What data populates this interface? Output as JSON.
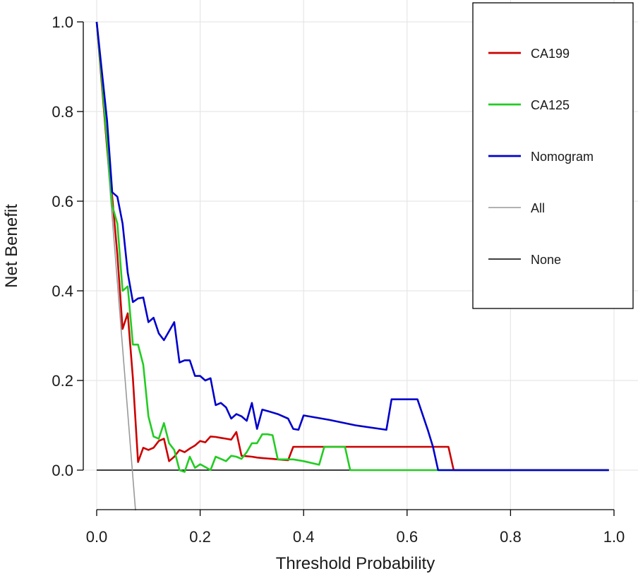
{
  "chart_data": {
    "type": "line",
    "title": "",
    "xlabel": "Threshold Probability",
    "ylabel": "Net Benefit",
    "xlim": [
      0.0,
      1.0
    ],
    "ylim": [
      -0.09,
      1.0
    ],
    "xticks": [
      0.0,
      0.2,
      0.4,
      0.6,
      0.8,
      1.0
    ],
    "xtick_labels": [
      "0.0",
      "0.2",
      "0.4",
      "0.6",
      "0.8",
      "1.0"
    ],
    "yticks": [
      0.0,
      0.2,
      0.4,
      0.6,
      0.8,
      1.0
    ],
    "ytick_labels": [
      "0.0",
      "0.2",
      "0.4",
      "0.6",
      "0.8",
      "1.0"
    ],
    "grid": true,
    "legend_position": "top-right",
    "series": [
      {
        "name": "CA199",
        "color": "#cc0000",
        "x": [
          0.0,
          0.01,
          0.02,
          0.03,
          0.04,
          0.05,
          0.06,
          0.07,
          0.08,
          0.09,
          0.1,
          0.11,
          0.12,
          0.13,
          0.14,
          0.15,
          0.16,
          0.17,
          0.18,
          0.19,
          0.2,
          0.21,
          0.22,
          0.23,
          0.24,
          0.25,
          0.26,
          0.27,
          0.28,
          0.29,
          0.3,
          0.31,
          0.32,
          0.33,
          0.34,
          0.35,
          0.36,
          0.37,
          0.38,
          0.4,
          0.45,
          0.5,
          0.55,
          0.6,
          0.65,
          0.68,
          0.69,
          0.7,
          0.8,
          0.9,
          0.99
        ],
        "y": [
          1.0,
          0.86,
          0.72,
          0.61,
          0.48,
          0.315,
          0.35,
          0.205,
          0.018,
          0.05,
          0.045,
          0.05,
          0.065,
          0.07,
          0.02,
          0.03,
          0.045,
          0.04,
          0.048,
          0.055,
          0.065,
          0.062,
          0.075,
          0.074,
          0.072,
          0.07,
          0.068,
          0.085,
          0.032,
          0.031,
          0.03,
          0.028,
          0.027,
          0.026,
          0.025,
          0.024,
          0.023,
          0.022,
          0.052,
          0.052,
          0.052,
          0.052,
          0.052,
          0.052,
          0.052,
          0.052,
          0.0,
          0.0,
          0.0,
          0.0,
          0.0
        ]
      },
      {
        "name": "CA125",
        "color": "#22cc22",
        "x": [
          0.0,
          0.01,
          0.02,
          0.03,
          0.04,
          0.05,
          0.06,
          0.07,
          0.08,
          0.09,
          0.1,
          0.11,
          0.12,
          0.13,
          0.14,
          0.15,
          0.16,
          0.17,
          0.18,
          0.19,
          0.2,
          0.21,
          0.22,
          0.23,
          0.24,
          0.25,
          0.26,
          0.27,
          0.28,
          0.29,
          0.3,
          0.31,
          0.32,
          0.33,
          0.34,
          0.35,
          0.36,
          0.37,
          0.38,
          0.4,
          0.43,
          0.44,
          0.47,
          0.48,
          0.49,
          0.5,
          0.6,
          0.66,
          0.7,
          0.8,
          0.9,
          0.99
        ],
        "y": [
          1.0,
          0.87,
          0.73,
          0.59,
          0.55,
          0.4,
          0.41,
          0.28,
          0.28,
          0.235,
          0.12,
          0.075,
          0.07,
          0.105,
          0.06,
          0.045,
          0.0,
          -0.004,
          0.03,
          0.005,
          0.013,
          0.007,
          0.0,
          0.03,
          0.025,
          0.02,
          0.032,
          0.03,
          0.025,
          0.04,
          0.06,
          0.06,
          0.08,
          0.08,
          0.078,
          0.024,
          0.024,
          0.024,
          0.024,
          0.02,
          0.012,
          0.052,
          0.052,
          0.052,
          0.0,
          0.0,
          0.0,
          0.0,
          0.0,
          0.0,
          0.0,
          0.0
        ]
      },
      {
        "name": "Nomogram",
        "color": "#0000cc",
        "x": [
          0.0,
          0.01,
          0.02,
          0.03,
          0.04,
          0.05,
          0.06,
          0.07,
          0.08,
          0.09,
          0.1,
          0.11,
          0.12,
          0.13,
          0.14,
          0.15,
          0.16,
          0.17,
          0.18,
          0.19,
          0.2,
          0.21,
          0.22,
          0.23,
          0.24,
          0.25,
          0.26,
          0.27,
          0.28,
          0.29,
          0.3,
          0.31,
          0.32,
          0.33,
          0.35,
          0.37,
          0.38,
          0.39,
          0.4,
          0.45,
          0.5,
          0.56,
          0.57,
          0.6,
          0.62,
          0.64,
          0.65,
          0.66,
          0.7,
          0.8,
          0.9,
          0.99
        ],
        "y": [
          1.0,
          0.89,
          0.78,
          0.62,
          0.61,
          0.55,
          0.44,
          0.375,
          0.383,
          0.385,
          0.33,
          0.34,
          0.305,
          0.29,
          0.31,
          0.33,
          0.24,
          0.245,
          0.245,
          0.21,
          0.21,
          0.2,
          0.205,
          0.145,
          0.15,
          0.14,
          0.115,
          0.125,
          0.12,
          0.11,
          0.15,
          0.092,
          0.135,
          0.132,
          0.125,
          0.115,
          0.092,
          0.09,
          0.122,
          0.112,
          0.1,
          0.09,
          0.158,
          0.158,
          0.158,
          0.09,
          0.052,
          0.0,
          0.0,
          0.0,
          0.0,
          0.0
        ]
      },
      {
        "name": "All",
        "color": "#999999",
        "x": [
          0.0,
          0.075
        ],
        "y": [
          1.0,
          -0.09
        ]
      },
      {
        "name": "None",
        "color": "#000000",
        "x": [
          0.0,
          0.99
        ],
        "y": [
          0.0,
          0.0
        ]
      }
    ]
  }
}
